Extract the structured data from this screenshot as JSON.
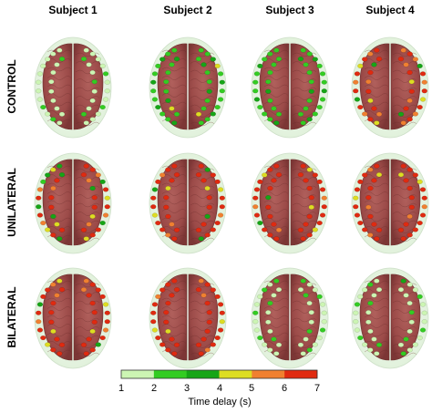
{
  "subjects": [
    "Subject 1",
    "Subject 2",
    "Subject 3",
    "Subject 4"
  ],
  "conditions": [
    "CONTROL",
    "UNILATERAL",
    "BILATERAL"
  ],
  "colorbar": {
    "title": "Time delay (s)",
    "ticks": [
      "1",
      "2",
      "3",
      "4",
      "5",
      "6",
      "7"
    ],
    "colors": [
      "#ccf5b3",
      "#33cc22",
      "#16a516",
      "#dddd22",
      "#f08030",
      "#e02a10"
    ]
  },
  "brain_color": "#9b4a48",
  "head_color": "#e6f3e2",
  "electrode_levels": [
    [
      [
        1,
        1,
        1,
        1,
        1,
        1,
        1,
        1,
        2,
        1,
        2,
        1,
        1,
        1,
        1,
        1,
        2,
        1,
        1,
        1,
        2,
        1,
        1,
        1,
        2,
        1,
        1,
        1,
        1,
        1,
        1,
        1,
        2,
        1,
        1,
        2,
        1,
        1,
        1,
        2
      ],
      [
        2,
        2,
        3,
        2,
        2,
        3,
        2,
        2,
        3,
        2,
        2,
        3,
        2,
        2,
        3,
        4,
        2,
        3,
        2,
        2,
        2,
        3,
        2,
        2,
        3,
        2,
        2,
        2,
        2,
        3,
        4,
        2,
        2,
        3,
        2,
        2,
        3,
        2,
        2,
        4
      ],
      [
        2,
        2,
        2,
        3,
        2,
        2,
        2,
        3,
        2,
        2,
        2,
        3,
        2,
        2,
        3,
        2,
        2,
        2,
        3,
        2,
        2,
        2,
        3,
        2,
        2,
        2,
        2,
        2,
        3,
        2,
        2,
        2,
        3,
        2,
        2,
        2,
        3,
        2,
        2,
        2
      ],
      [
        6,
        5,
        6,
        4,
        6,
        5,
        6,
        3,
        6,
        5,
        6,
        4,
        5,
        6,
        5,
        3,
        6,
        5,
        6,
        4,
        6,
        5,
        6,
        5,
        6,
        3,
        6,
        5,
        6,
        4,
        6,
        5,
        6,
        5,
        6,
        4,
        6,
        5,
        6,
        3
      ]
    ],
    [
      [
        3,
        4,
        3,
        2,
        5,
        6,
        3,
        6,
        5,
        4,
        6,
        3,
        6,
        6,
        5,
        3,
        6,
        4,
        6,
        5,
        3,
        6,
        6,
        4,
        3,
        6,
        5,
        6,
        6,
        3,
        4,
        6,
        6,
        5,
        3,
        6,
        6,
        4,
        5,
        6
      ],
      [
        6,
        6,
        5,
        6,
        3,
        6,
        6,
        4,
        6,
        6,
        5,
        6,
        6,
        3,
        6,
        6,
        4,
        6,
        6,
        5,
        6,
        6,
        6,
        3,
        6,
        6,
        4,
        6,
        6,
        6,
        5,
        6,
        6,
        6,
        4,
        6,
        6,
        3,
        6,
        6
      ],
      [
        6,
        6,
        4,
        6,
        6,
        6,
        5,
        6,
        3,
        6,
        6,
        6,
        6,
        4,
        6,
        6,
        6,
        5,
        6,
        6,
        6,
        4,
        6,
        6,
        6,
        6,
        6,
        3,
        6,
        6,
        6,
        5,
        6,
        6,
        6,
        6,
        4,
        6,
        6,
        6
      ],
      [
        6,
        5,
        6,
        6,
        6,
        4,
        6,
        6,
        6,
        6,
        5,
        6,
        6,
        6,
        6,
        4,
        6,
        6,
        5,
        6,
        6,
        6,
        6,
        6,
        4,
        6,
        6,
        6,
        5,
        6,
        6,
        6,
        4,
        6,
        6,
        6,
        6,
        5,
        6,
        6
      ]
    ],
    [
      [
        4,
        5,
        6,
        6,
        3,
        6,
        5,
        6,
        6,
        4,
        6,
        6,
        5,
        6,
        6,
        6,
        4,
        6,
        6,
        5,
        6,
        3,
        6,
        6,
        6,
        5,
        6,
        6,
        6,
        4,
        6,
        6,
        5,
        6,
        6,
        6,
        6,
        4,
        6,
        6
      ],
      [
        6,
        6,
        6,
        5,
        6,
        6,
        6,
        4,
        6,
        6,
        6,
        6,
        5,
        6,
        6,
        6,
        6,
        6,
        4,
        6,
        6,
        6,
        5,
        6,
        6,
        6,
        6,
        6,
        6,
        4,
        6,
        6,
        6,
        5,
        6,
        6,
        6,
        6,
        6,
        6
      ],
      [
        2,
        1,
        2,
        1,
        1,
        2,
        1,
        1,
        2,
        1,
        1,
        1,
        2,
        1,
        1,
        2,
        1,
        1,
        1,
        2,
        1,
        1,
        2,
        1,
        1,
        1,
        2,
        1,
        1,
        1,
        2,
        1,
        1,
        2,
        1,
        1,
        1,
        2,
        1,
        1
      ],
      [
        1,
        2,
        1,
        1,
        2,
        1,
        1,
        1,
        2,
        1,
        1,
        1,
        3,
        1,
        1,
        2,
        1,
        1,
        1,
        2,
        1,
        1,
        1,
        2,
        1,
        1,
        2,
        1,
        1,
        1,
        1,
        2,
        1,
        1,
        1,
        2,
        1,
        1,
        2,
        1
      ]
    ]
  ]
}
